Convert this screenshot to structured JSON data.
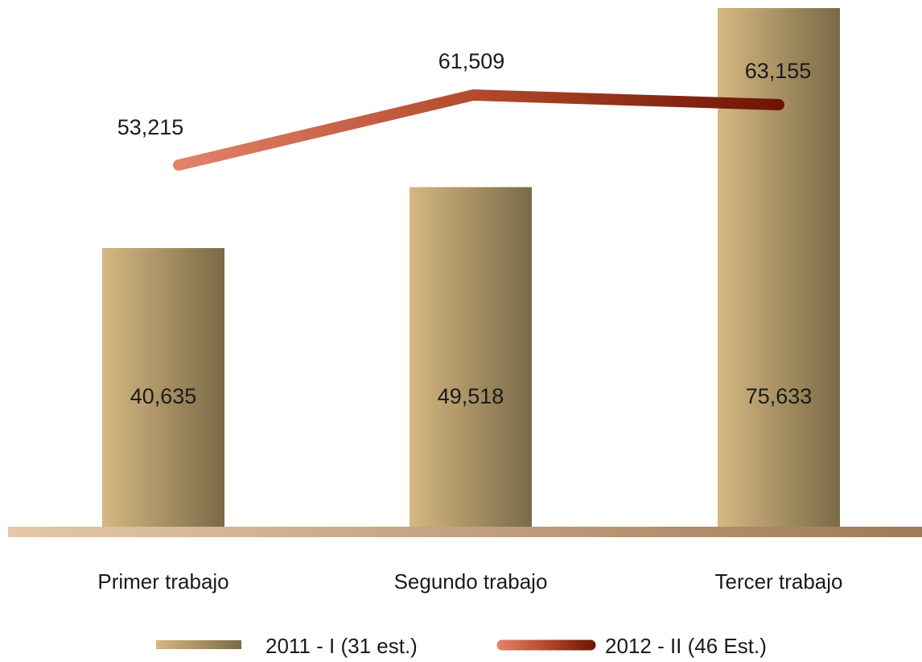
{
  "chart_data": {
    "type": "bar",
    "title": "",
    "xlabel": "",
    "ylabel": "",
    "categories": [
      "Primer trabajo",
      "Segundo trabajo",
      "Tercer trabajo"
    ],
    "series": [
      {
        "name": "2011 - I (31 est.)",
        "type": "bar",
        "values": [
          40635,
          49518,
          75633
        ],
        "labels": [
          "40,635",
          "49,518",
          "75,633"
        ]
      },
      {
        "name": "2012 - II (46 Est.)",
        "type": "line",
        "values": [
          53215,
          61509,
          63155
        ],
        "labels": [
          "53,215",
          "61,509",
          "63,155"
        ]
      }
    ],
    "ylim": [
      0,
      75633
    ],
    "grid": false,
    "legend": "bottom-center",
    "colors": {
      "bar_light": "#d6b882",
      "bar_dark": "#7a6a47",
      "line_start": "#e2836c",
      "line_mid": "#b24a2c",
      "line_end": "#6e1404",
      "baseline_start": "#e3c8a8",
      "baseline_end": "#a07a58"
    }
  }
}
